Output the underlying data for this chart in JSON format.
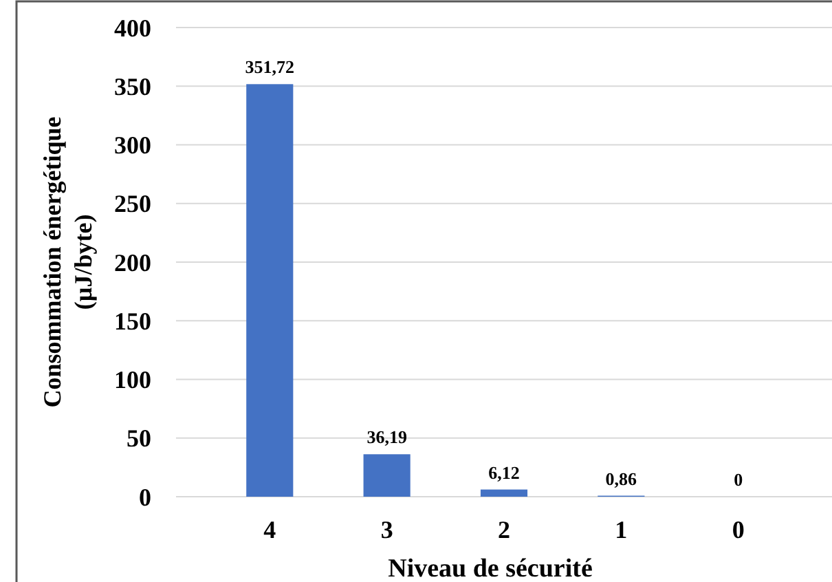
{
  "chart_data": {
    "type": "bar",
    "xlabel": "Niveau de sécurité",
    "ylabel": "Consommation énergétique (µJ/byte)",
    "categories": [
      "4",
      "3",
      "2",
      "1",
      "0"
    ],
    "values": [
      351.72,
      36.19,
      6.12,
      0.86,
      0
    ],
    "value_labels": [
      "351,72",
      "36,19",
      "6,12",
      "0,86",
      "0"
    ],
    "color": "#4472c4",
    "ylim": [
      0,
      400
    ],
    "yticks": [
      0,
      50,
      100,
      150,
      200,
      250,
      300,
      350,
      400
    ],
    "grid": "y"
  }
}
